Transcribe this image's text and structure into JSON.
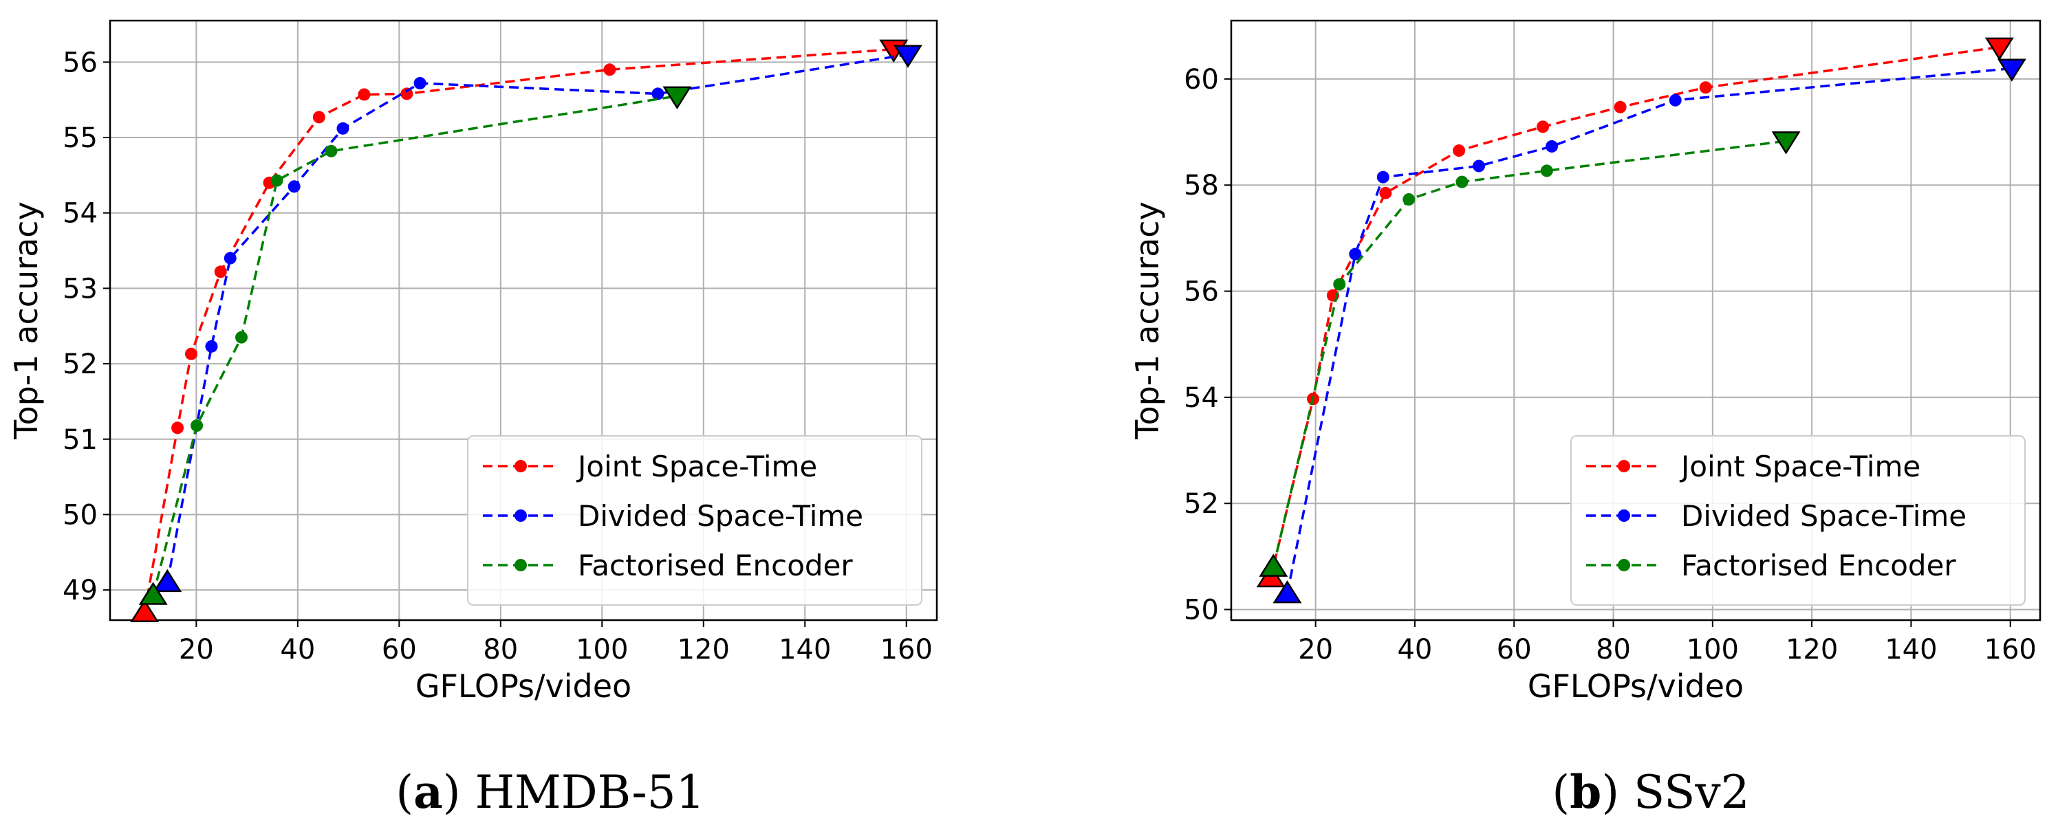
{
  "chart_data": [
    {
      "type": "line",
      "caption_letter": "a",
      "caption_text": "HMDB-51",
      "xlabel": "GFLOPs/video",
      "ylabel": "Top-1 accuracy",
      "xlim": [
        3,
        166
      ],
      "ylim": [
        48.6,
        56.55
      ],
      "xticks": [
        20,
        40,
        60,
        80,
        100,
        120,
        140,
        160
      ],
      "yticks": [
        49,
        50,
        51,
        52,
        53,
        54,
        55,
        56
      ],
      "grid": true,
      "legend_position": "bottom-right",
      "series": [
        {
          "name": "Joint Space-Time",
          "color": "#ff0000",
          "points": [
            [
              9.8,
              48.7
            ],
            [
              16.3,
              51.15
            ],
            [
              19.0,
              52.13
            ],
            [
              24.8,
              53.22
            ],
            [
              34.4,
              54.4
            ],
            [
              44.2,
              55.27
            ],
            [
              53.1,
              55.57
            ],
            [
              61.5,
              55.58
            ],
            [
              101.5,
              55.9
            ],
            [
              157.5,
              56.17
            ]
          ],
          "start_marker_index": 0,
          "end_marker_index": 9
        },
        {
          "name": "Divided Space-Time",
          "color": "#0000ff",
          "points": [
            [
              14.3,
              49.1
            ],
            [
              23.0,
              52.23
            ],
            [
              26.7,
              53.4
            ],
            [
              39.3,
              54.35
            ],
            [
              48.9,
              55.12
            ],
            [
              64.1,
              55.72
            ],
            [
              111.0,
              55.58
            ],
            [
              160.3,
              56.1
            ]
          ],
          "start_marker_index": 0,
          "end_marker_index": 7
        },
        {
          "name": "Factorised Encoder",
          "color": "#008000",
          "points": [
            [
              11.5,
              48.93
            ],
            [
              20.1,
              51.18
            ],
            [
              28.9,
              52.35
            ],
            [
              35.9,
              54.43
            ],
            [
              46.6,
              54.82
            ],
            [
              114.8,
              55.55
            ]
          ],
          "start_marker_index": 0,
          "end_marker_index": 5
        }
      ]
    },
    {
      "type": "line",
      "caption_letter": "b",
      "caption_text": "SSv2",
      "xlabel": "GFLOPs/video",
      "ylabel": "Top-1 accuracy",
      "xlim": [
        3,
        166
      ],
      "ylim": [
        49.8,
        61.1
      ],
      "xticks": [
        20,
        40,
        60,
        80,
        100,
        120,
        140,
        160
      ],
      "yticks": [
        50,
        52,
        54,
        56,
        58,
        60
      ],
      "grid": true,
      "legend_position": "bottom-right",
      "series": [
        {
          "name": "Joint Space-Time",
          "color": "#ff0000",
          "points": [
            [
              11.0,
              50.6
            ],
            [
              19.5,
              53.97
            ],
            [
              23.5,
              55.92
            ],
            [
              34.1,
              57.85
            ],
            [
              48.9,
              58.65
            ],
            [
              65.8,
              59.1
            ],
            [
              81.4,
              59.47
            ],
            [
              98.6,
              59.84
            ],
            [
              157.8,
              60.6
            ]
          ],
          "start_marker_index": 0,
          "end_marker_index": 8
        },
        {
          "name": "Divided Space-Time",
          "color": "#0000ff",
          "points": [
            [
              14.3,
              50.3
            ],
            [
              28.0,
              56.7
            ],
            [
              33.6,
              58.15
            ],
            [
              52.9,
              58.36
            ],
            [
              67.6,
              58.73
            ],
            [
              92.5,
              59.6
            ],
            [
              160.3,
              60.2
            ]
          ],
          "start_marker_index": 0,
          "end_marker_index": 6
        },
        {
          "name": "Factorised Encoder",
          "color": "#008000",
          "points": [
            [
              11.5,
              50.8
            ],
            [
              24.8,
              56.13
            ],
            [
              38.8,
              57.73
            ],
            [
              49.5,
              58.06
            ],
            [
              66.6,
              58.27
            ],
            [
              114.8,
              58.83
            ]
          ],
          "start_marker_index": 0,
          "end_marker_index": 5
        }
      ]
    }
  ]
}
